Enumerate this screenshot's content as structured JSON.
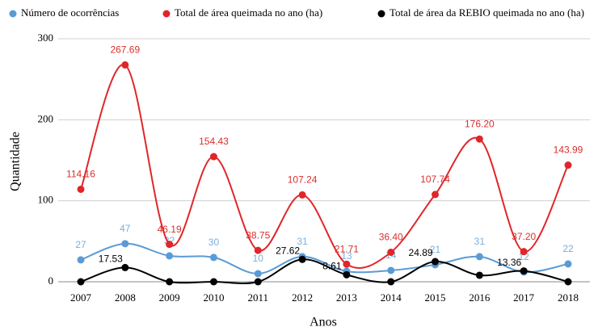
{
  "chart_data": {
    "type": "line",
    "x_label": "Anos",
    "y_label": "Quantidade",
    "categories": [
      "2007",
      "2008",
      "2009",
      "2010",
      "2011",
      "2012",
      "2013",
      "2014",
      "2015",
      "2016",
      "2017",
      "2018"
    ],
    "ylim": [
      0,
      300
    ],
    "yticks": [
      0,
      100,
      200,
      300
    ],
    "grid": true,
    "legend": "top",
    "smooth": true,
    "series": [
      {
        "name": "Número de ocorrências",
        "color": "#5b9bd5",
        "values": [
          27,
          47,
          32,
          30,
          10,
          31,
          13,
          14,
          21,
          31,
          12,
          22
        ]
      },
      {
        "name": "Total de área queimada no ano (ha)",
        "color": "#e0262a",
        "values": [
          114.16,
          267.69,
          46.19,
          154.43,
          38.75,
          107.24,
          21.71,
          36.4,
          107.74,
          176.2,
          37.2,
          143.99
        ],
        "value_labels": [
          "114.16",
          "267.69",
          "46.19",
          "154.43",
          "38.75",
          "107.24",
          "21.71",
          "36.40",
          "107.74",
          "176.20",
          "37.20",
          "143.99"
        ]
      },
      {
        "name": "Total de área da REBIO queimada no ano (ha)",
        "color": "#000000",
        "values": [
          0,
          17.53,
          0,
          0,
          0,
          27.62,
          8.61,
          0,
          24.89,
          8,
          13.36,
          0
        ],
        "value_labels": [
          null,
          "17.53",
          null,
          null,
          null,
          "27.62",
          "8.61",
          null,
          "24.89",
          null,
          "13.36",
          null
        ]
      }
    ]
  }
}
